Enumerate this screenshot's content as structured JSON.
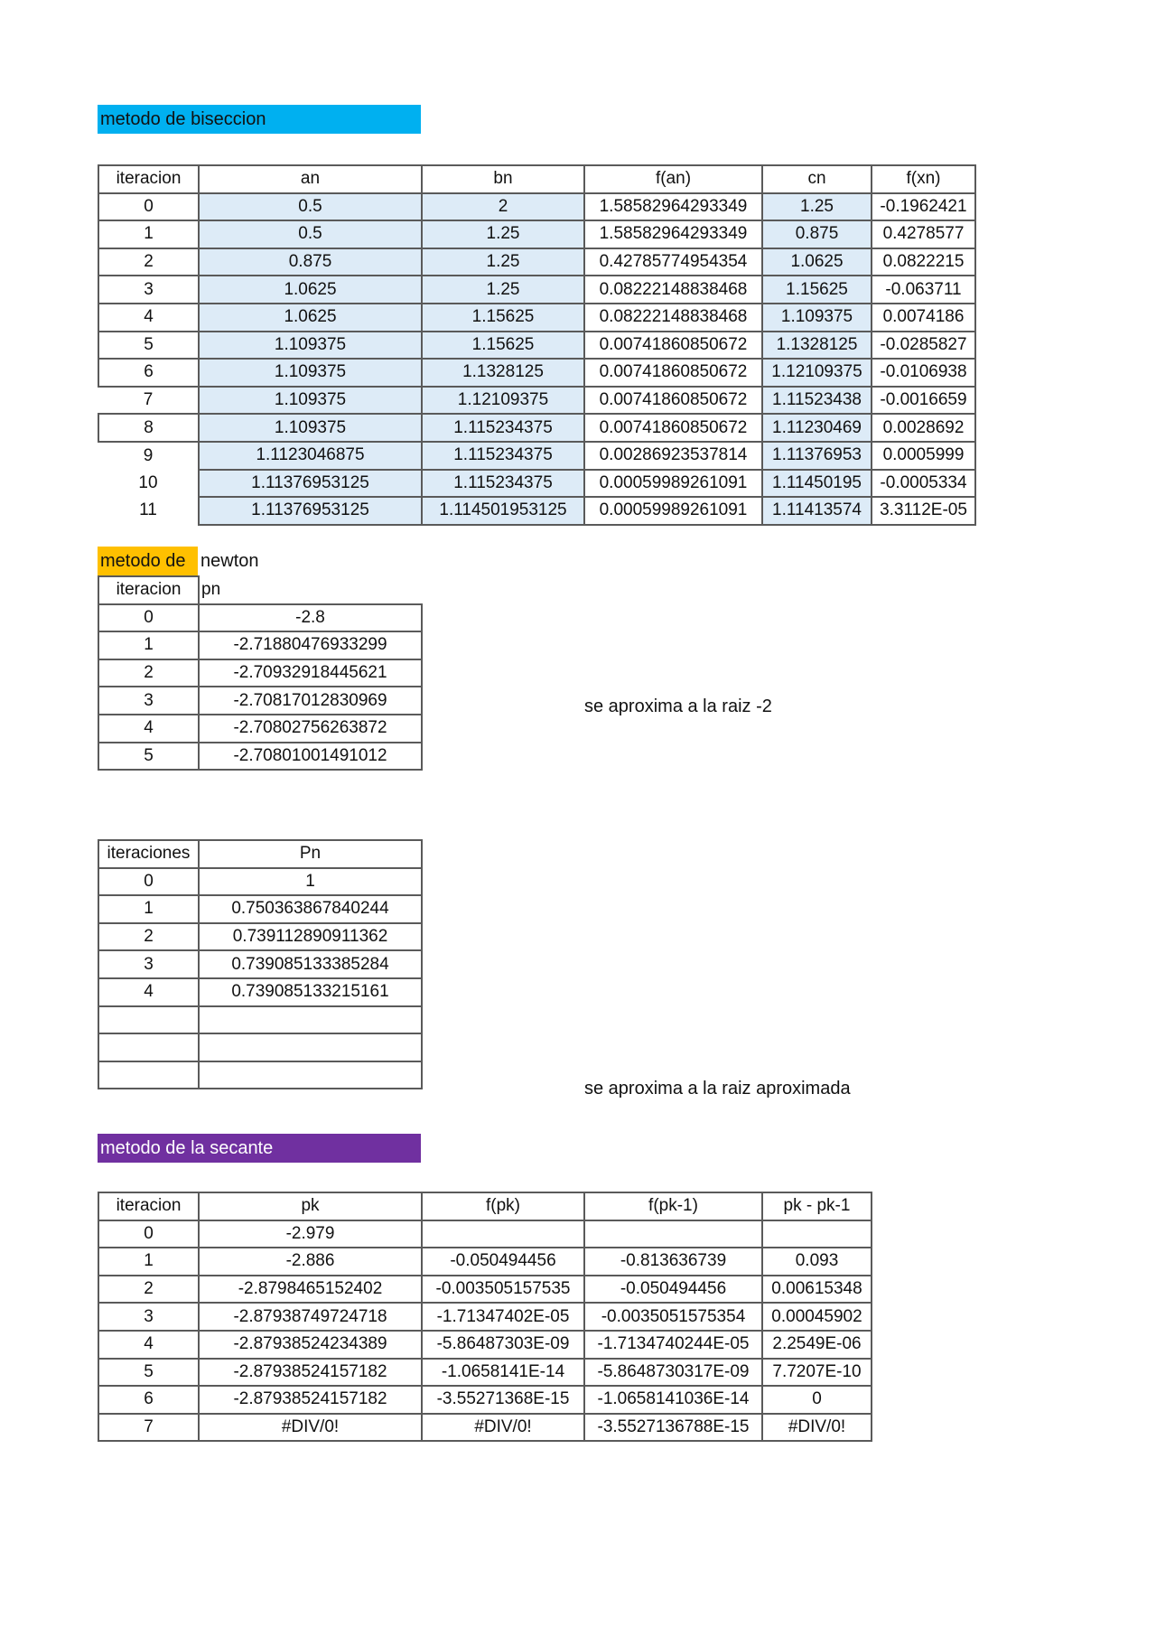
{
  "biseccion": {
    "title": "metodo de biseccion",
    "title_color": "#00b0f0",
    "fill_color": "#ddebf7",
    "headers": [
      "iteracion",
      "an",
      "bn",
      "f(an)",
      "cn",
      "f(xn)"
    ],
    "rows": [
      [
        "0",
        "0.5",
        "2",
        "1.58582964293349",
        "1.25",
        "-0.1962421"
      ],
      [
        "1",
        "0.5",
        "1.25",
        "1.58582964293349",
        "0.875",
        "0.4278577"
      ],
      [
        "2",
        "0.875",
        "1.25",
        "0.42785774954354",
        "1.0625",
        "0.0822215"
      ],
      [
        "3",
        "1.0625",
        "1.25",
        "0.08222148838468",
        "1.15625",
        "-0.063711"
      ],
      [
        "4",
        "1.0625",
        "1.15625",
        "0.08222148838468",
        "1.109375",
        "0.0074186"
      ],
      [
        "5",
        "1.109375",
        "1.15625",
        "0.00741860850672",
        "1.1328125",
        "-0.0285827"
      ],
      [
        "6",
        "1.109375",
        "1.1328125",
        "0.00741860850672",
        "1.12109375",
        "-0.0106938"
      ],
      [
        "7",
        "1.109375",
        "1.12109375",
        "0.00741860850672",
        "1.11523438",
        "-0.0016659"
      ],
      [
        "8",
        "1.109375",
        "1.115234375",
        "0.00741860850672",
        "1.11230469",
        "0.0028692"
      ],
      [
        "9",
        "1.1123046875",
        "1.115234375",
        "0.00286923537814",
        "1.11376953",
        "0.0005999"
      ],
      [
        "10",
        "1.11376953125",
        "1.115234375",
        "0.00059989261091",
        "1.11450195",
        "-0.0005334"
      ],
      [
        "11",
        "1.11376953125",
        "1.114501953125",
        "0.00059989261091",
        "1.11413574",
        "3.3112E-05"
      ]
    ]
  },
  "newton": {
    "title_part1": "metodo de",
    "title_part2": "newton",
    "title_color": "#ffc000",
    "headers": [
      "iteracion",
      "pn"
    ],
    "rows": [
      [
        "0",
        "-2.8"
      ],
      [
        "1",
        "-2.71880476933299"
      ],
      [
        "2",
        "-2.70932918445621"
      ],
      [
        "3",
        "-2.70817012830969"
      ],
      [
        "4",
        "-2.70802756263872"
      ],
      [
        "5",
        "-2.70801001491012"
      ]
    ],
    "note": "se aproxima a la raiz -2"
  },
  "punto_fijo": {
    "headers": [
      "iteraciones",
      "Pn"
    ],
    "rows": [
      [
        "0",
        "1"
      ],
      [
        "1",
        "0.750363867840244"
      ],
      [
        "2",
        "0.739112890911362"
      ],
      [
        "3",
        "0.739085133385284"
      ],
      [
        "4",
        "0.739085133215161"
      ],
      [
        "",
        ""
      ],
      [
        "",
        ""
      ],
      [
        "",
        ""
      ]
    ],
    "note": "se aproxima a la raiz aproximada"
  },
  "secante": {
    "title": "metodo de la secante",
    "title_color": "#7030a0",
    "headers": [
      "iteracion",
      "pk",
      "f(pk)",
      "f(pk-1)",
      "pk - pk-1"
    ],
    "rows": [
      [
        "0",
        "-2.979",
        "",
        "",
        ""
      ],
      [
        "1",
        "-2.886",
        "-0.050494456",
        "-0.813636739",
        "0.093"
      ],
      [
        "2",
        "-2.8798465152402",
        "-0.003505157535",
        "-0.050494456",
        "0.00615348"
      ],
      [
        "3",
        "-2.87938749724718",
        "-1.71347402E-05",
        "-0.0035051575354",
        "0.00045902"
      ],
      [
        "4",
        "-2.87938524234389",
        "-5.86487303E-09",
        "-1.7134740244E-05",
        "2.2549E-06"
      ],
      [
        "5",
        "-2.87938524157182",
        "-1.0658141E-14",
        "-5.8648730317E-09",
        "7.7207E-10"
      ],
      [
        "6",
        "-2.87938524157182",
        "-3.55271368E-15",
        "-1.0658141036E-14",
        "0"
      ],
      [
        "7",
        "#DIV/0!",
        "#DIV/0!",
        "-3.5527136788E-15",
        "#DIV/0!"
      ]
    ]
  }
}
